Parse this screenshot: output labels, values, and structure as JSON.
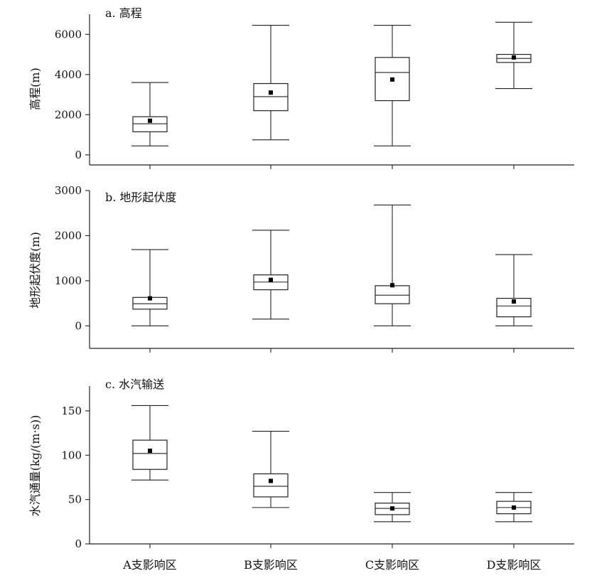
{
  "chart_data": [
    {
      "type": "box",
      "title": "a. 高程",
      "ylabel": "高程(m)",
      "ylim": [
        -500,
        7000
      ],
      "yticks": [
        0,
        2000,
        4000,
        6000
      ],
      "categories": [
        "A支影响区",
        "B支影响区",
        "C支影响区",
        "D支影响区"
      ],
      "boxes": [
        {
          "min": 450,
          "q1": 1150,
          "median": 1550,
          "q3": 1900,
          "max": 3600,
          "mean": 1700
        },
        {
          "min": 750,
          "q1": 2200,
          "median": 2900,
          "q3": 3550,
          "max": 6450,
          "mean": 3100
        },
        {
          "min": 450,
          "q1": 2700,
          "median": 4100,
          "q3": 4850,
          "max": 6450,
          "mean": 3750
        },
        {
          "min": 3300,
          "q1": 4600,
          "median": 4800,
          "q3": 5000,
          "max": 6600,
          "mean": 4850
        }
      ]
    },
    {
      "type": "box",
      "title": "b. 地形起伏度",
      "ylabel": "地形起伏度(m)",
      "ylim": [
        -500,
        3000
      ],
      "yticks": [
        0,
        1000,
        2000,
        3000
      ],
      "categories": [
        "A支影响区",
        "B支影响区",
        "C支影响区",
        "D支影响区"
      ],
      "boxes": [
        {
          "min": 0,
          "q1": 370,
          "median": 490,
          "q3": 630,
          "max": 1690,
          "mean": 610
        },
        {
          "min": 150,
          "q1": 800,
          "median": 970,
          "q3": 1130,
          "max": 2120,
          "mean": 1020
        },
        {
          "min": 0,
          "q1": 490,
          "median": 680,
          "q3": 890,
          "max": 2680,
          "mean": 900
        },
        {
          "min": 0,
          "q1": 200,
          "median": 440,
          "q3": 610,
          "max": 1580,
          "mean": 540
        }
      ]
    },
    {
      "type": "box",
      "title": "c. 水汽输送",
      "ylabel": "水汽通量(kg/(m·s))",
      "ylim": [
        0,
        178
      ],
      "yticks": [
        0,
        50,
        100,
        150
      ],
      "categories": [
        "A支影响区",
        "B支影响区",
        "C支影响区",
        "D支影响区"
      ],
      "boxes": [
        {
          "min": 72,
          "q1": 84,
          "median": 102,
          "q3": 117,
          "max": 156,
          "mean": 105
        },
        {
          "min": 41,
          "q1": 53,
          "median": 65,
          "q3": 79,
          "max": 127,
          "mean": 71
        },
        {
          "min": 25,
          "q1": 33,
          "median": 40,
          "q3": 46,
          "max": 58,
          "mean": 40
        },
        {
          "min": 25,
          "q1": 34,
          "median": 41,
          "q3": 48,
          "max": 58,
          "mean": 41
        }
      ]
    }
  ]
}
